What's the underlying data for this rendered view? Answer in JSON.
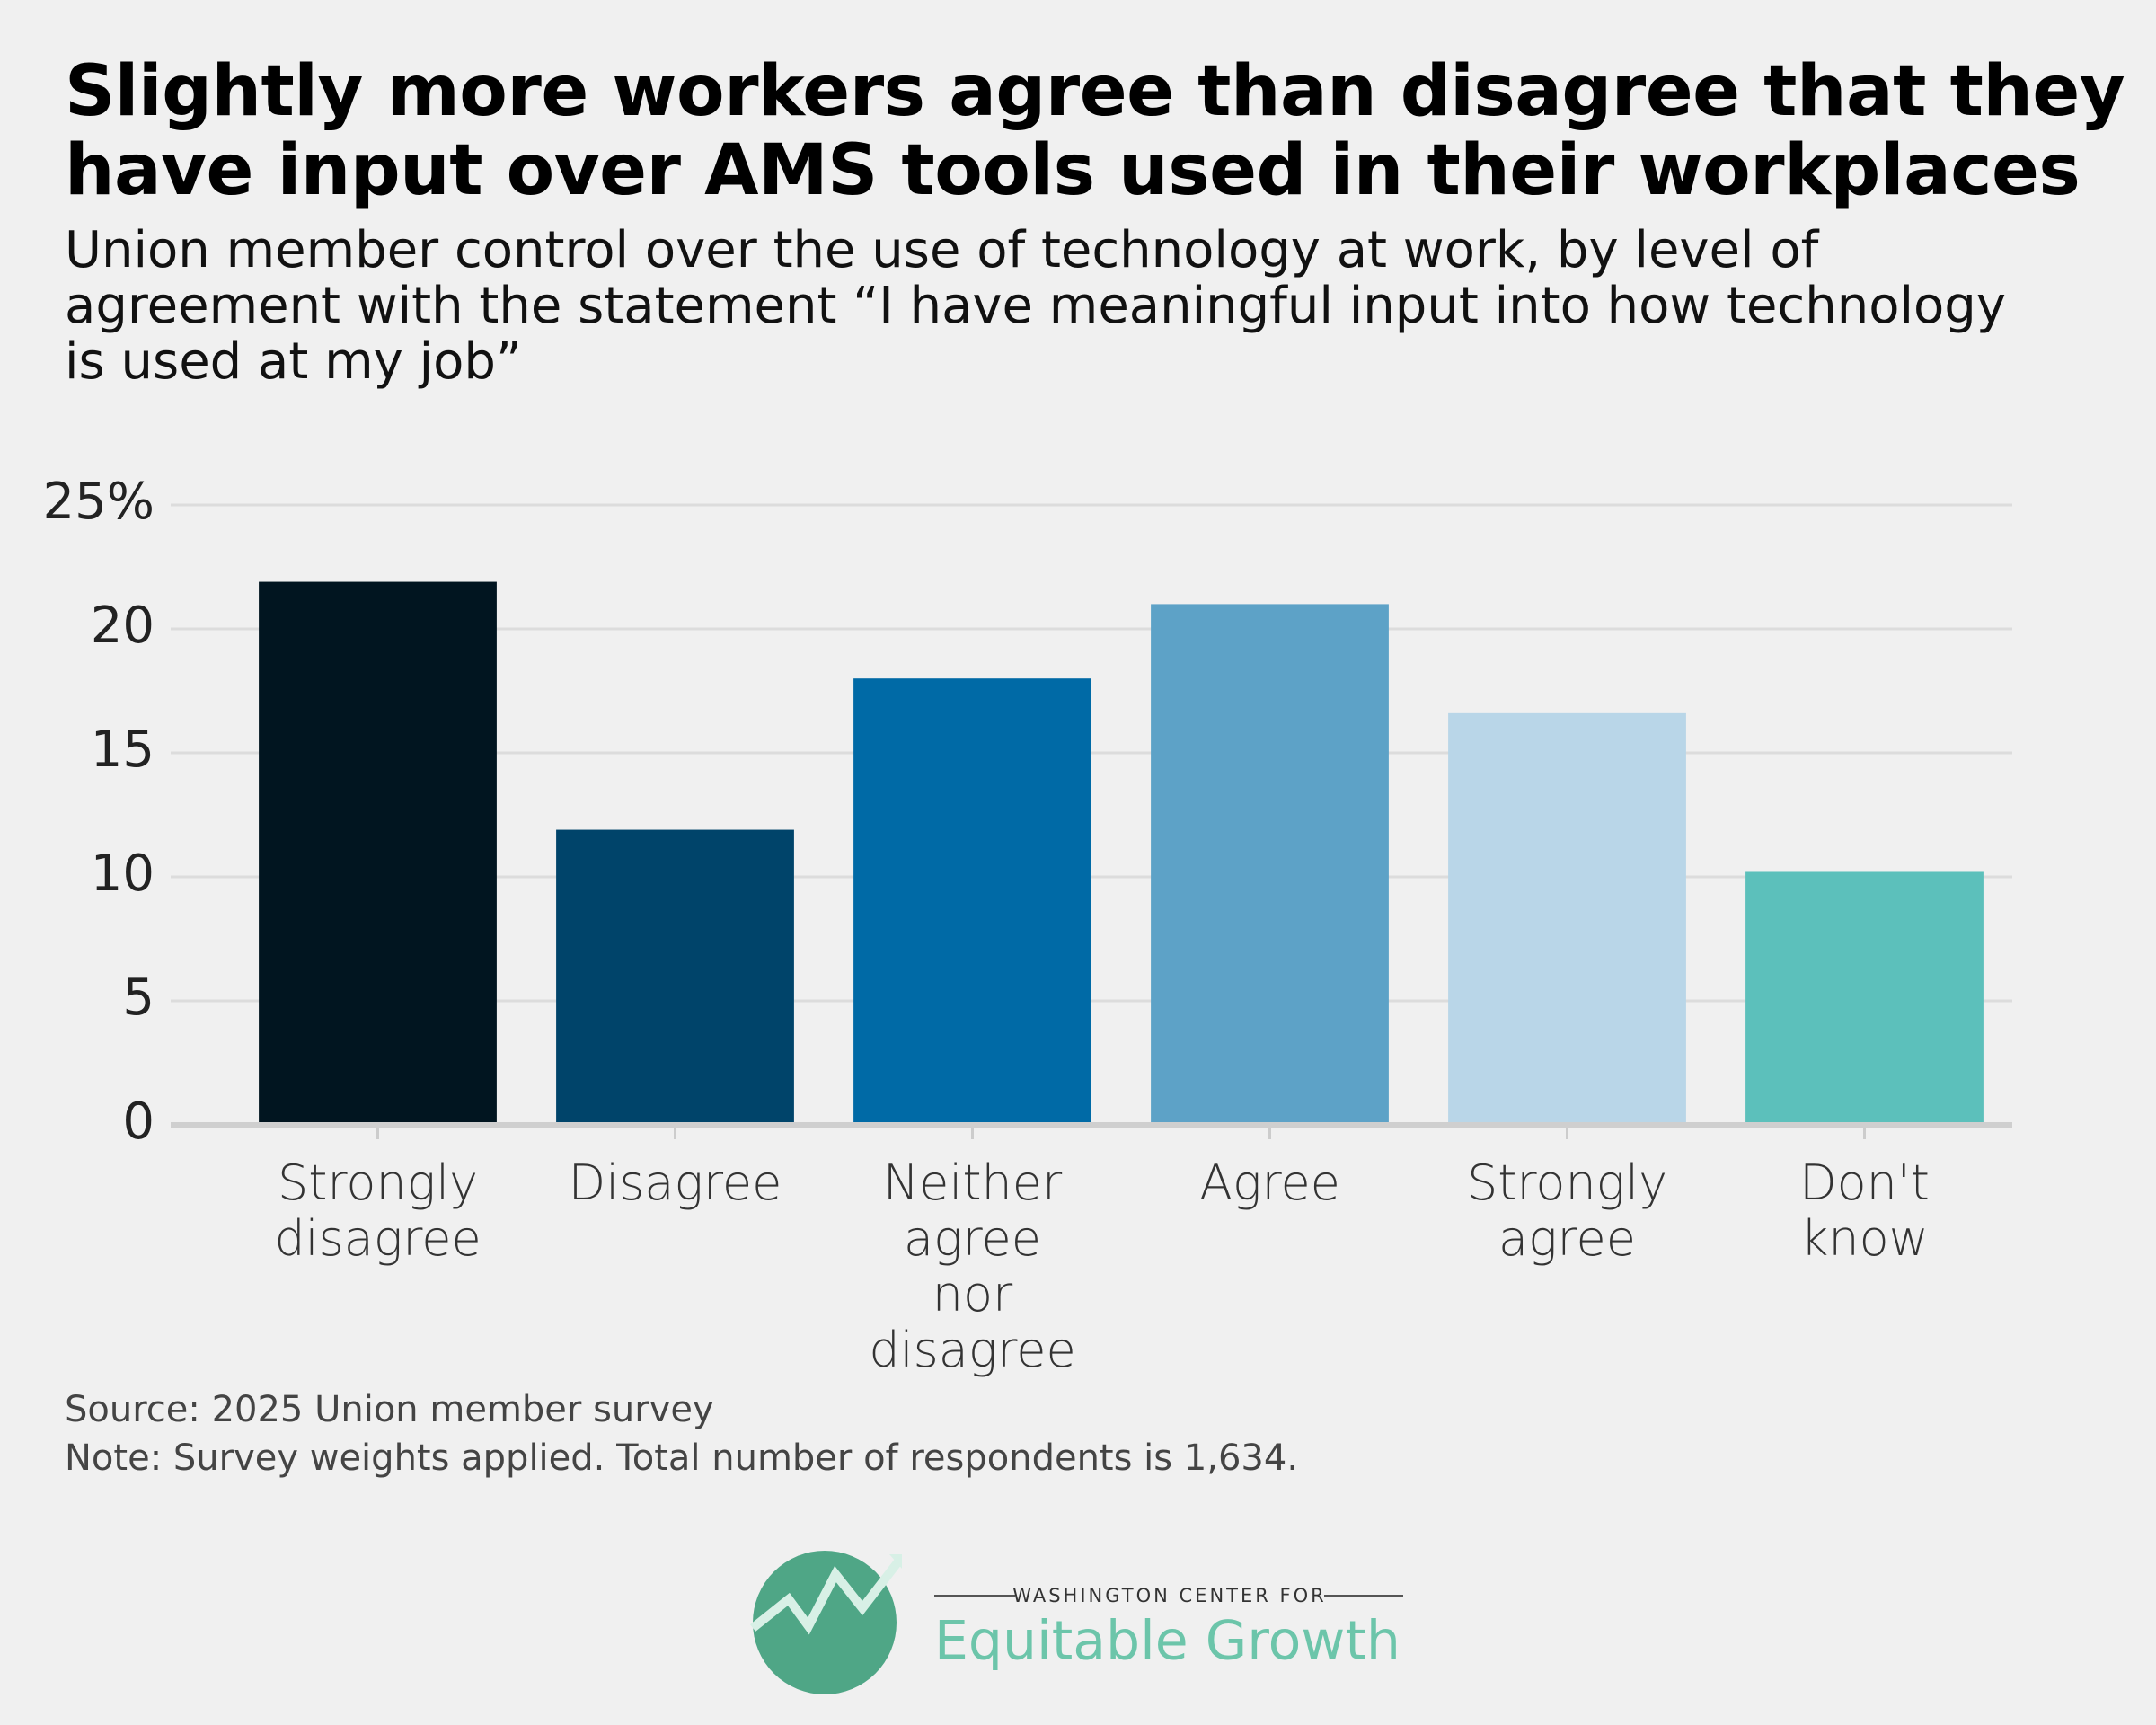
{
  "chart_data": {
    "type": "bar",
    "title": "Slightly more workers agree than disagree that they have input over AMS tools used in their workplaces",
    "subtitle": "Union member control over the use of technology at work, by level of agreement with the statement “I have meaningful input into how technology is used at my job”",
    "categories": [
      "Strongly disagree",
      "Disagree",
      "Neither agree nor disagree",
      "Agree",
      "Strongly agree",
      "Don't know"
    ],
    "values": [
      21.9,
      11.9,
      18.0,
      21.0,
      16.6,
      10.2
    ],
    "colors": [
      "#011520",
      "#00446a",
      "#006aa6",
      "#5da2c7",
      "#b9d6e8",
      "#5cc0bb"
    ],
    "ylim": [
      0,
      25
    ],
    "yticks": [
      0,
      5,
      10,
      15,
      20,
      {
        "value": 25,
        "label": "25%"
      }
    ],
    "grid": true,
    "source": "Source: 2025 Union member survey",
    "note": "Note: Survey weights applied. Total number of respondents is 1,634."
  },
  "logo": {
    "top": "WASHINGTON CENTER FOR",
    "name": "Equitable Growth"
  }
}
